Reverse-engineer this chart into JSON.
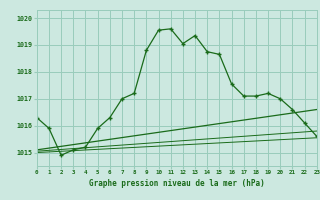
{
  "title": "Graphe pression niveau de la mer (hPa)",
  "bg_color": "#cce8e0",
  "grid_color": "#99ccbb",
  "line_color": "#1a6b1a",
  "x_min": 0,
  "x_max": 23,
  "y_min": 1014.5,
  "y_max": 1020.3,
  "yticks": [
    1015,
    1016,
    1017,
    1018,
    1019,
    1020
  ],
  "main_line": [
    [
      0,
      1016.3
    ],
    [
      1,
      1015.9
    ],
    [
      2,
      1014.9
    ],
    [
      3,
      1015.1
    ],
    [
      4,
      1015.2
    ],
    [
      5,
      1015.9
    ],
    [
      6,
      1016.3
    ],
    [
      7,
      1017.0
    ],
    [
      8,
      1017.2
    ],
    [
      9,
      1018.8
    ],
    [
      10,
      1019.55
    ],
    [
      11,
      1019.6
    ],
    [
      12,
      1019.05
    ],
    [
      13,
      1019.35
    ],
    [
      14,
      1018.75
    ],
    [
      15,
      1018.65
    ],
    [
      16,
      1017.55
    ],
    [
      17,
      1017.1
    ],
    [
      18,
      1017.1
    ],
    [
      19,
      1017.2
    ],
    [
      20,
      1017.0
    ],
    [
      21,
      1016.6
    ],
    [
      22,
      1016.1
    ],
    [
      23,
      1015.6
    ]
  ],
  "flat_line1": [
    [
      0,
      1015.0
    ],
    [
      23,
      1015.55
    ]
  ],
  "flat_line2": [
    [
      0,
      1015.05
    ],
    [
      23,
      1015.8
    ]
  ],
  "flat_line3": [
    [
      0,
      1015.1
    ],
    [
      23,
      1016.6
    ]
  ]
}
